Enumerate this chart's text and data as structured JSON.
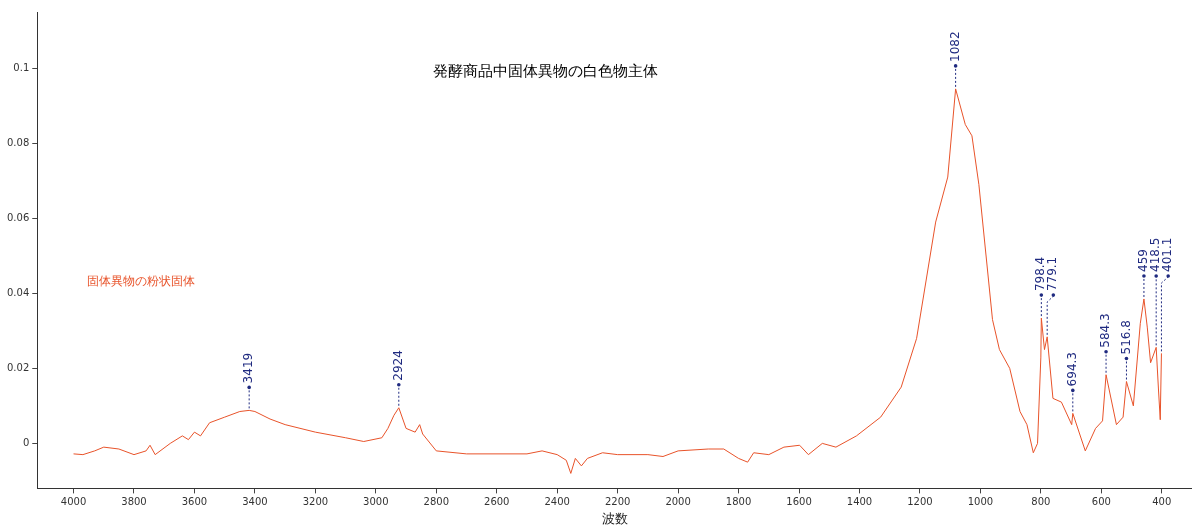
{
  "chart_data": {
    "type": "line",
    "title": "発酵商品中固体異物の白色物主体",
    "xlabel": "波数",
    "xlim": [
      4120,
      300
    ],
    "xticks": [
      4000,
      3800,
      3600,
      3400,
      3200,
      3000,
      2800,
      2600,
      2400,
      2200,
      2000,
      1800,
      1600,
      1400,
      1200,
      1000,
      800,
      600,
      400
    ],
    "ylim": [
      -0.012,
      0.115
    ],
    "yticks": [
      0,
      0.02,
      0.04,
      0.06,
      0.08,
      0.1
    ],
    "grid": false,
    "legend": false,
    "marker": "none",
    "line_style": "solid",
    "series": [
      {
        "name": "固体異物の粉状固体",
        "color": "#e8532a",
        "x": [
          4000,
          3969,
          3930,
          3900,
          3850,
          3800,
          3760,
          3747,
          3730,
          3680,
          3640,
          3620,
          3600,
          3580,
          3550,
          3500,
          3450,
          3419,
          3400,
          3350,
          3300,
          3200,
          3100,
          3040,
          2980,
          2960,
          2940,
          2924,
          2900,
          2870,
          2855,
          2845,
          2800,
          2700,
          2500,
          2450,
          2400,
          2370,
          2355,
          2340,
          2320,
          2300,
          2250,
          2200,
          2100,
          2050,
          2000,
          1900,
          1849,
          1800,
          1770,
          1750,
          1700,
          1650,
          1598,
          1569,
          1523,
          1478,
          1410,
          1330,
          1262,
          1211,
          1148,
          1108,
          1082,
          1050,
          1028,
          1005,
          960,
          937,
          903,
          869,
          846,
          825,
          811,
          800,
          798.4,
          788,
          779.1,
          760,
          732,
          698,
          694.3,
          653,
          619,
          596,
          584.3,
          550,
          528,
          516.8,
          494,
          471,
          459,
          448,
          437,
          418.5,
          411,
          405,
          401.1
        ],
        "values": [
          -0.0028,
          -0.003,
          -0.002,
          -0.001,
          -0.0015,
          -0.003,
          -0.002,
          -0.0005,
          -0.003,
          0,
          0.002,
          0.001,
          0.003,
          0.002,
          0.0055,
          0.007,
          0.0085,
          0.0088,
          0.0085,
          0.0065,
          0.005,
          0.003,
          0.0015,
          0.0005,
          0.0015,
          0.004,
          0.0075,
          0.0095,
          0.004,
          0.003,
          0.005,
          0.0025,
          -0.002,
          -0.0028,
          -0.0028,
          -0.002,
          -0.003,
          -0.0045,
          -0.008,
          -0.004,
          -0.006,
          -0.004,
          -0.0025,
          -0.003,
          -0.003,
          -0.0035,
          -0.002,
          -0.0015,
          -0.0015,
          -0.004,
          -0.005,
          -0.0025,
          -0.003,
          -0.001,
          -0.0005,
          -0.003,
          0,
          -0.001,
          0.002,
          0.007,
          0.015,
          0.028,
          0.059,
          0.071,
          0.0945,
          0.085,
          0.082,
          0.069,
          0.033,
          0.025,
          0.02,
          0.0085,
          0.005,
          -0.0025,
          0,
          0.023,
          0.0334,
          0.025,
          0.0284,
          0.012,
          0.011,
          0.005,
          0.008,
          -0.002,
          0.004,
          0.006,
          0.0183,
          0.005,
          0.007,
          0.0165,
          0.01,
          0.032,
          0.0385,
          0.031,
          0.0215,
          0.0256,
          0.0145,
          0.0063,
          0.024
        ]
      }
    ],
    "annotations": [
      {
        "text": "3419",
        "x": 3419,
        "y": 0.0088
      },
      {
        "text": "2924",
        "x": 2924,
        "y": 0.0095
      },
      {
        "text": "1082",
        "x": 1082,
        "y": 0.0945
      },
      {
        "text": "798.4",
        "x": 798.4,
        "y": 0.0334
      },
      {
        "text": "779.1",
        "x": 779.1,
        "y": 0.0284
      },
      {
        "text": "694.3",
        "x": 694.3,
        "y": 0.008
      },
      {
        "text": "584.3",
        "x": 584.3,
        "y": 0.0183
      },
      {
        "text": "516.8",
        "x": 516.8,
        "y": 0.0165
      },
      {
        "text": "459",
        "x": 459,
        "y": 0.0385
      },
      {
        "text": "418.5",
        "x": 418.5,
        "y": 0.0256
      },
      {
        "text": "401.1",
        "x": 401.1,
        "y": 0.024
      }
    ]
  }
}
